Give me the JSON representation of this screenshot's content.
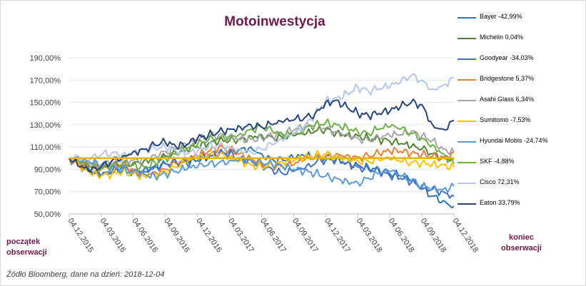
{
  "chart_data": {
    "type": "line",
    "title": "Motoinwestycja",
    "x_ticks": [
      "04.12.2015",
      "04.03.2016",
      "04.06.2016",
      "04.09.2016",
      "04.12.2016",
      "04.03.2017",
      "04.06.2017",
      "04.09.2017",
      "04.12.2017",
      "04.03.2018",
      "04.06.2018",
      "04.09.2018",
      "04.12.2018"
    ],
    "y_ticks": [
      "50,00%",
      "70,00%",
      "90,00%",
      "110,00%",
      "130,00%",
      "150,00%",
      "170,00%",
      "190,00%"
    ],
    "ylim": [
      50,
      190
    ],
    "reference_line": 100,
    "reference_color": "#e8b400",
    "x_values": [
      "04.12.2015",
      "04.01.2016",
      "04.02.2016",
      "04.03.2016",
      "04.04.2016",
      "04.05.2016",
      "04.06.2016",
      "04.07.2016",
      "04.08.2016",
      "04.09.2016",
      "04.10.2016",
      "04.11.2016",
      "04.12.2016",
      "04.01.2017",
      "04.02.2017",
      "04.03.2017",
      "04.04.2017",
      "04.05.2017",
      "04.06.2017",
      "04.07.2017",
      "04.08.2017",
      "04.09.2017",
      "04.10.2017",
      "04.11.2017",
      "04.12.2017",
      "04.01.2018",
      "04.02.2018",
      "04.03.2018",
      "04.04.2018",
      "04.05.2018",
      "04.06.2018",
      "04.07.2018",
      "04.08.2018",
      "04.09.2018",
      "04.10.2018",
      "04.11.2018",
      "04.12.2018"
    ],
    "series": [
      {
        "name": "Bayer -42,99%",
        "color": "#2e75b6",
        "values": [
          100,
          95,
          88,
          84,
          86,
          90,
          88,
          90,
          93,
          95,
          97,
          95,
          98,
          100,
          103,
          106,
          108,
          110,
          104,
          99,
          98,
          100,
          102,
          100,
          98,
          99,
          96,
          94,
          92,
          90,
          86,
          84,
          80,
          72,
          66,
          62,
          57
        ]
      },
      {
        "name": "Michelin 0,04%",
        "color": "#548235",
        "values": [
          100,
          96,
          92,
          90,
          93,
          95,
          96,
          98,
          100,
          102,
          104,
          108,
          110,
          113,
          115,
          116,
          117,
          120,
          121,
          119,
          118,
          120,
          121,
          124,
          126,
          123,
          121,
          120,
          118,
          117,
          115,
          113,
          110,
          108,
          104,
          100,
          100
        ]
      },
      {
        "name": "Goodyear -34,03%",
        "color": "#4472c4",
        "values": [
          100,
          93,
          87,
          84,
          88,
          92,
          90,
          88,
          92,
          95,
          96,
          97,
          100,
          103,
          105,
          104,
          100,
          98,
          94,
          90,
          86,
          88,
          90,
          95,
          102,
          100,
          96,
          92,
          90,
          88,
          84,
          82,
          78,
          74,
          72,
          70,
          66
        ]
      },
      {
        "name": "Bridgestone 5,37%",
        "color": "#ed7d31",
        "values": [
          100,
          94,
          92,
          90,
          92,
          94,
          90,
          86,
          88,
          90,
          95,
          98,
          102,
          106,
          110,
          108,
          104,
          100,
          96,
          94,
          92,
          94,
          98,
          100,
          102,
          104,
          103,
          101,
          102,
          104,
          106,
          106,
          104,
          103,
          102,
          101,
          105
        ]
      },
      {
        "name": "Asahi Glass 6,34%",
        "color": "#a5a5a5",
        "values": [
          100,
          97,
          95,
          94,
          97,
          99,
          98,
          100,
          103,
          106,
          108,
          112,
          116,
          119,
          121,
          120,
          118,
          117,
          118,
          120,
          122,
          125,
          128,
          130,
          127,
          124,
          122,
          118,
          116,
          118,
          120,
          121,
          124,
          120,
          116,
          108,
          106
        ]
      },
      {
        "name": "Sumitomo -7,53%",
        "color": "#ffc000",
        "values": [
          100,
          92,
          86,
          84,
          86,
          88,
          86,
          84,
          86,
          88,
          92,
          96,
          100,
          102,
          104,
          102,
          98,
          94,
          92,
          94,
          96,
          98,
          100,
          102,
          104,
          102,
          100,
          98,
          97,
          98,
          99,
          97,
          96,
          96,
          95,
          94,
          92
        ]
      },
      {
        "name": "Hyundai Mobis -24,74%",
        "color": "#5b9bd5",
        "values": [
          100,
          98,
          96,
          94,
          92,
          90,
          88,
          86,
          84,
          86,
          88,
          90,
          92,
          94,
          96,
          98,
          100,
          98,
          96,
          94,
          92,
          90,
          88,
          86,
          84,
          82,
          80,
          78,
          82,
          86,
          88,
          84,
          80,
          76,
          74,
          72,
          75
        ]
      },
      {
        "name": "SKF -4,88%",
        "color": "#70ad47",
        "values": [
          100,
          96,
          92,
          90,
          94,
          96,
          94,
          92,
          96,
          100,
          104,
          108,
          112,
          116,
          118,
          120,
          122,
          126,
          128,
          124,
          120,
          122,
          126,
          130,
          132,
          130,
          128,
          124,
          122,
          126,
          128,
          126,
          122,
          118,
          112,
          104,
          95
        ]
      },
      {
        "name": "Cisco 72,31%",
        "color": "#b4c7e7",
        "values": [
          100,
          98,
          99,
          103,
          105,
          104,
          106,
          108,
          109,
          110,
          106,
          104,
          106,
          110,
          112,
          110,
          108,
          106,
          108,
          112,
          116,
          122,
          128,
          140,
          152,
          154,
          158,
          164,
          160,
          162,
          164,
          168,
          174,
          170,
          162,
          166,
          172
        ]
      },
      {
        "name": "Eaton 33,79%",
        "color": "#264478",
        "values": [
          100,
          92,
          88,
          92,
          98,
          102,
          106,
          108,
          112,
          114,
          110,
          112,
          118,
          120,
          124,
          126,
          128,
          130,
          128,
          130,
          132,
          134,
          136,
          140,
          150,
          152,
          146,
          140,
          138,
          140,
          142,
          146,
          150,
          148,
          130,
          126,
          134
        ]
      }
    ]
  },
  "labels": {
    "start": [
      "początek",
      "obserwacji"
    ],
    "end": [
      "koniec",
      "obserwacji"
    ],
    "source": "Źódło Bloomberg, dane na dzień: 2018-12-04"
  }
}
